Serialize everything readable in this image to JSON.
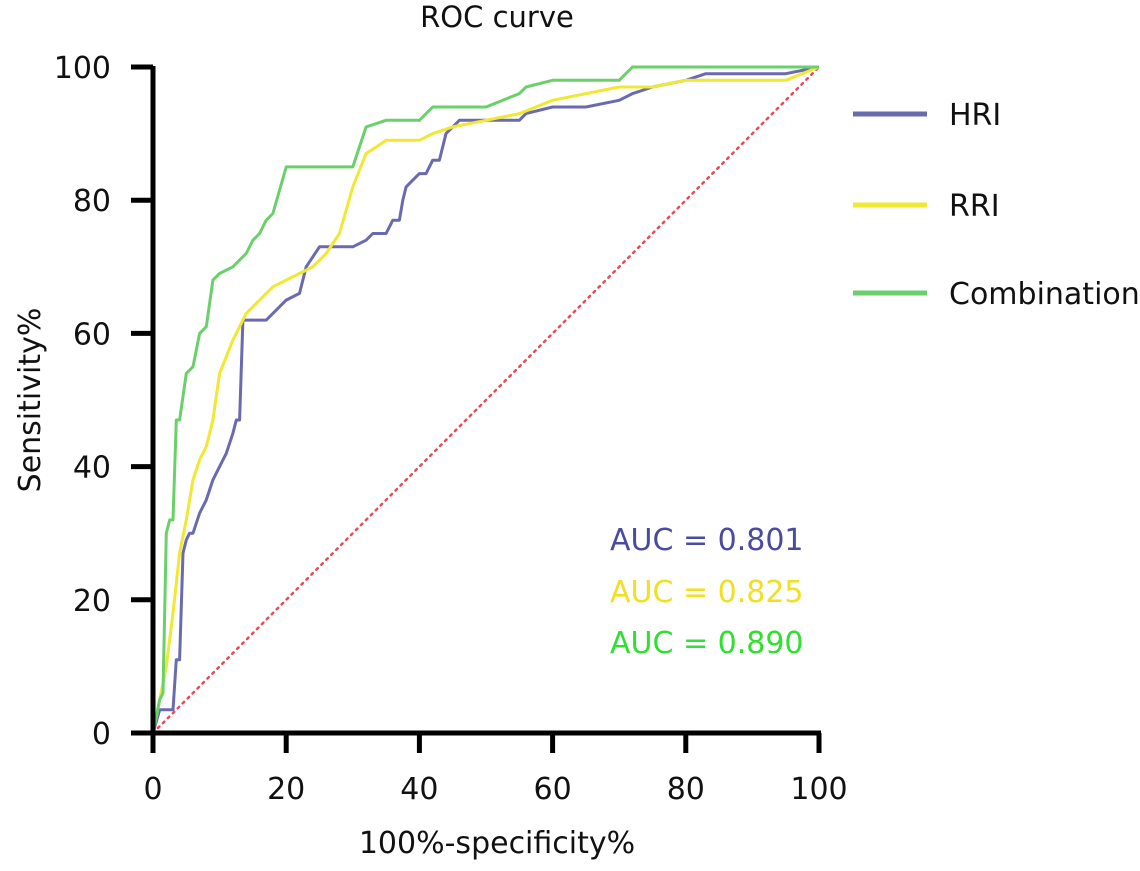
{
  "chart_data": {
    "type": "line",
    "title": "ROC curve",
    "xlabel": "100%-specificity%",
    "ylabel": "Sensitivity%",
    "xlim": [
      0,
      100
    ],
    "ylim": [
      0,
      100
    ],
    "xticks": [
      "0",
      "20",
      "40",
      "60",
      "80",
      "100"
    ],
    "yticks": [
      "0",
      "20",
      "40",
      "60",
      "80",
      "100"
    ],
    "grid": false,
    "legend_position": "right",
    "reference_line": {
      "x": [
        0,
        100
      ],
      "y": [
        0,
        100
      ],
      "color": "#e0505a",
      "style": "dotted"
    },
    "series": [
      {
        "name": "HRI",
        "color": "#6a6ab0",
        "auc_label": "AUC = 0.801",
        "label_color": "#4a4aa0",
        "x": [
          0,
          1,
          3,
          3.5,
          4,
          4.5,
          5,
          5.5,
          6,
          7,
          8,
          9,
          10,
          11,
          12,
          12.5,
          13,
          13.5,
          15,
          17,
          18,
          20,
          22,
          23,
          25,
          26,
          28,
          30,
          32,
          33,
          35,
          36,
          37,
          37.5,
          38,
          39,
          40,
          41,
          42,
          43,
          44,
          45,
          46,
          50,
          55,
          56,
          60,
          65,
          70,
          72,
          75,
          80,
          83,
          85,
          90,
          95,
          100
        ],
        "y": [
          0,
          3.5,
          3.5,
          11,
          11,
          27,
          29,
          30,
          30,
          33,
          35,
          38,
          40,
          42,
          45,
          47,
          47,
          62,
          62,
          62,
          63,
          65,
          66,
          70,
          73,
          73,
          73,
          73,
          74,
          75,
          75,
          77,
          77,
          80,
          82,
          83,
          84,
          84,
          86,
          86,
          90,
          91,
          92,
          92,
          92,
          93,
          94,
          94,
          95,
          96,
          97,
          98,
          99,
          99,
          99,
          99,
          100
        ]
      },
      {
        "name": "RRI",
        "color": "#f0e832",
        "auc_label": "AUC = 0.825",
        "label_color": "#f0e020",
        "x": [
          0,
          1,
          2,
          3,
          4,
          5,
          6,
          7,
          8,
          9,
          10,
          12,
          14,
          16,
          18,
          20,
          22,
          24,
          26,
          28,
          30,
          32,
          35,
          38,
          40,
          42,
          45,
          50,
          55,
          60,
          65,
          70,
          75,
          80,
          85,
          90,
          95,
          100
        ],
        "y": [
          0,
          5,
          10,
          18,
          27,
          32,
          38,
          41,
          43,
          47,
          54,
          59,
          63,
          65,
          67,
          68,
          69,
          70,
          72,
          75,
          82,
          87,
          89,
          89,
          89,
          90,
          91,
          92,
          93,
          95,
          96,
          97,
          97,
          98,
          98,
          98,
          98,
          100
        ]
      },
      {
        "name": "Combination",
        "color": "#6ad16a",
        "auc_label": "AUC = 0.890",
        "label_color": "#30e030",
        "x": [
          0,
          1,
          1.5,
          2,
          2.5,
          3,
          3.5,
          4,
          5,
          6,
          7,
          8,
          9,
          10,
          12,
          13,
          14,
          15,
          16,
          17,
          18,
          20,
          25,
          28,
          30,
          32,
          35,
          40,
          42,
          45,
          50,
          55,
          56,
          60,
          65,
          70,
          72,
          75,
          80,
          85,
          90,
          95,
          100
        ],
        "y": [
          0,
          5,
          6,
          30,
          32,
          32,
          47,
          47,
          54,
          55,
          60,
          61,
          68,
          69,
          70,
          71,
          72,
          74,
          75,
          77,
          78,
          85,
          85,
          85,
          85,
          91,
          92,
          92,
          94,
          94,
          94,
          96,
          97,
          98,
          98,
          98,
          100,
          100,
          100,
          100,
          100,
          100,
          100
        ]
      }
    ]
  }
}
